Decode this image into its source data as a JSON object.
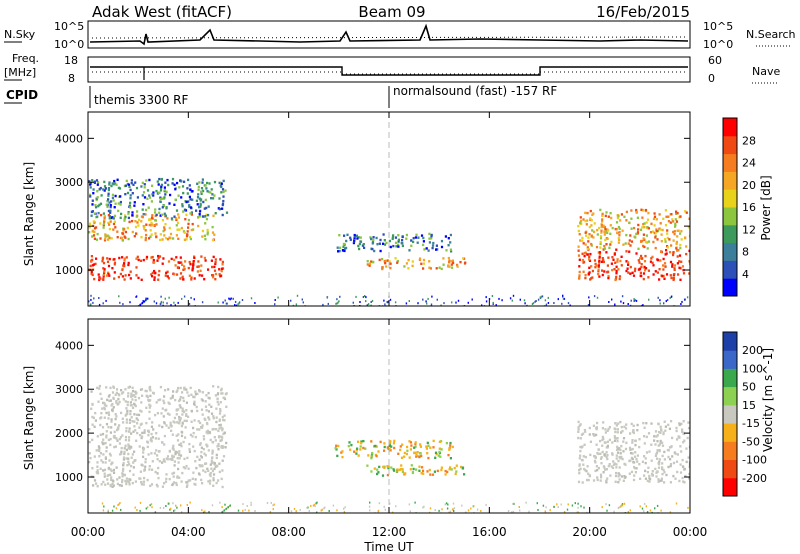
{
  "header": {
    "station": "Adak West (fitACF)",
    "beam": "Beam 09",
    "date": "16/Feb/2015"
  },
  "top_panels": {
    "nsky_label": "N.Sky",
    "nsky_ticks": [
      "10^5",
      "10^0"
    ],
    "nsearch_label": "N.Search",
    "nsearch_ticks": [
      "10^5",
      "10^0"
    ],
    "freq_label_1": "Freq.",
    "freq_label_2": "[MHz]",
    "freq_ticks": [
      "18",
      "8"
    ],
    "nave_label": "Nave",
    "nave_ticks": [
      "60",
      "0"
    ],
    "cpid_label": "CPID",
    "cpid_segments": [
      {
        "start_hour": 0,
        "text": "themis 3300 RF"
      },
      {
        "start_hour": 12,
        "text": "normalsound (fast) -157 RF"
      }
    ]
  },
  "chart_data": [
    {
      "type": "heatmap",
      "name": "power",
      "ylabel": "Slant Range [km]",
      "xlabel": "",
      "xlim": [
        0,
        24
      ],
      "ylim": [
        180,
        4600
      ],
      "y_ticks": [
        1000,
        2000,
        3000,
        4000
      ],
      "colorbar": {
        "label": "Power [dB]",
        "ticks": [
          "4",
          "8",
          "12",
          "16",
          "20",
          "24",
          "28"
        ],
        "colors": [
          "#0000ff",
          "#2c4fb8",
          "#3b7f9a",
          "#3b9a5c",
          "#8cc63f",
          "#e8d21a",
          "#f5a623",
          "#f57c1f",
          "#f04a14",
          "#ff0000"
        ]
      },
      "regions": [
        {
          "t0": 0.0,
          "t1": 5.4,
          "r0": 800,
          "r1": 1350,
          "level": "high"
        },
        {
          "t0": 0.0,
          "t1": 5.0,
          "r0": 1700,
          "r1": 2300,
          "level": "mid"
        },
        {
          "t0": 0.0,
          "t1": 5.5,
          "r0": 2200,
          "r1": 3100,
          "level": "low"
        },
        {
          "t0": 9.8,
          "t1": 14.5,
          "r0": 1450,
          "r1": 1850,
          "level": "low"
        },
        {
          "t0": 11.0,
          "t1": 15.0,
          "r0": 1050,
          "r1": 1300,
          "level": "mid"
        },
        {
          "t0": 19.5,
          "t1": 24.0,
          "r0": 800,
          "r1": 1500,
          "level": "high"
        },
        {
          "t0": 19.5,
          "t1": 24.0,
          "r0": 1500,
          "r1": 2400,
          "level": "mid"
        }
      ]
    },
    {
      "type": "heatmap",
      "name": "velocity",
      "ylabel": "Slant Range [km]",
      "xlabel": "Time UT",
      "xlim": [
        0,
        24
      ],
      "ylim": [
        180,
        4600
      ],
      "y_ticks": [
        1000,
        2000,
        3000,
        4000
      ],
      "x_ticks": [
        "00:00",
        "04:00",
        "08:00",
        "12:00",
        "16:00",
        "20:00",
        "00:00"
      ],
      "colorbar": {
        "label": "Velocity [m s^-1]",
        "ticks": [
          "200",
          "100",
          "50",
          "15",
          "-15",
          "-50",
          "-100",
          "-200"
        ],
        "colors": [
          "#1d3fa8",
          "#3a67c8",
          "#3aa84c",
          "#8cd151",
          "#c8c8c0",
          "#f5b01a",
          "#f57c1f",
          "#f04a14",
          "#ff0000"
        ]
      },
      "regions": [
        {
          "t0": 0.0,
          "t1": 5.4,
          "r0": 800,
          "r1": 1700,
          "level": "gs"
        },
        {
          "t0": 0.0,
          "t1": 5.5,
          "r0": 1700,
          "r1": 3100,
          "level": "gs"
        },
        {
          "t0": 9.8,
          "t1": 14.5,
          "r0": 1450,
          "r1": 1850,
          "level": "orange"
        },
        {
          "t0": 11.0,
          "t1": 15.0,
          "r0": 1050,
          "r1": 1300,
          "level": "orange"
        },
        {
          "t0": 19.5,
          "t1": 24.0,
          "r0": 900,
          "r1": 2300,
          "level": "gs"
        }
      ]
    }
  ]
}
